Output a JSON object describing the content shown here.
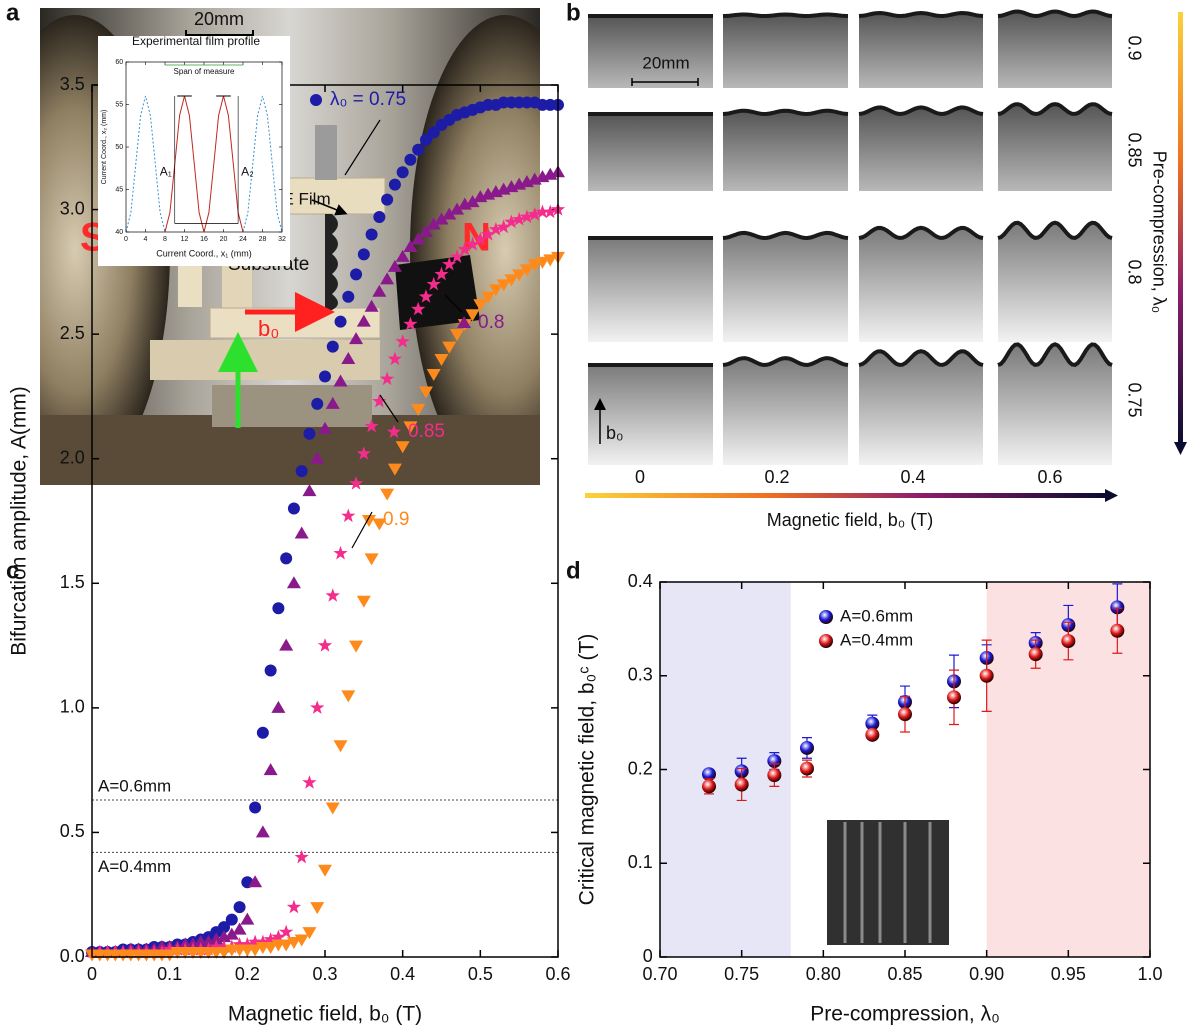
{
  "panel_a": {
    "label": "a",
    "scale_bar": "20mm",
    "precompression": "λ₀",
    "film": "MRE Film",
    "substrate": "Substrate",
    "south": "S",
    "north": "N",
    "field": "b₀"
  },
  "panel_b": {
    "label": "b",
    "scale_bar": "20mm",
    "field_arrow": "b₀",
    "precompression_values": [
      0.9,
      0.85,
      0.8,
      0.75
    ],
    "field_values": [
      0,
      0.2,
      0.4,
      0.6
    ],
    "precompression_title": "Pre-compression, λ₀",
    "field_title": "Magnetic field, b₀ (T)"
  },
  "chart_data": [
    {
      "type": "scatter",
      "label": "c",
      "xlabel": "Magnetic field, b₀ (T)",
      "ylabel": "Bifurcation amplitude, A(mm)",
      "xlim": [
        0,
        0.6
      ],
      "ylim": [
        0,
        3.5
      ],
      "xticks": [
        0,
        0.1,
        0.2,
        0.3,
        0.4,
        0.5,
        0.6
      ],
      "yticks": [
        {
          "value": 0,
          "label": "0.0"
        },
        0.5,
        {
          "value": 1,
          "label": "1.0"
        },
        1.5,
        {
          "value": 2,
          "label": "2.0"
        },
        2.5,
        {
          "value": 3,
          "label": "3.0"
        },
        3.5
      ],
      "x": [
        0,
        0.01,
        0.02,
        0.03,
        0.04,
        0.05,
        0.06,
        0.07,
        0.08,
        0.09,
        0.1,
        0.11,
        0.12,
        0.13,
        0.14,
        0.15,
        0.16,
        0.17,
        0.18,
        0.19,
        0.2,
        0.21,
        0.22,
        0.23,
        0.24,
        0.25,
        0.26,
        0.27,
        0.28,
        0.29,
        0.3,
        0.31,
        0.32,
        0.33,
        0.34,
        0.35,
        0.36,
        0.37,
        0.38,
        0.39,
        0.4,
        0.41,
        0.42,
        0.43,
        0.44,
        0.45,
        0.46,
        0.47,
        0.48,
        0.49,
        0.5,
        0.51,
        0.52,
        0.53,
        0.54,
        0.55,
        0.56,
        0.57,
        0.58,
        0.59,
        0.6
      ],
      "series": [
        {
          "name": "λ₀ = 0.75",
          "color": "#1c1ca6",
          "marker": "circle",
          "values": [
            0.02,
            0.02,
            0.02,
            0.02,
            0.03,
            0.03,
            0.03,
            0.03,
            0.04,
            0.04,
            0.04,
            0.05,
            0.05,
            0.06,
            0.07,
            0.08,
            0.1,
            0.12,
            0.15,
            0.2,
            0.3,
            0.6,
            0.9,
            1.15,
            1.4,
            1.6,
            1.8,
            1.95,
            2.1,
            2.22,
            2.33,
            2.45,
            2.55,
            2.65,
            2.74,
            2.82,
            2.9,
            2.97,
            3.04,
            3.1,
            3.15,
            3.2,
            3.24,
            3.28,
            3.31,
            3.34,
            3.36,
            3.38,
            3.39,
            3.4,
            3.41,
            3.42,
            3.42,
            3.43,
            3.43,
            3.43,
            3.43,
            3.43,
            3.42,
            3.42,
            3.42
          ]
        },
        {
          "name": "0.8",
          "color": "#8a1a8c",
          "marker": "triangle-up",
          "values": [
            0.02,
            0.02,
            0.02,
            0.02,
            0.02,
            0.03,
            0.03,
            0.03,
            0.03,
            0.04,
            0.04,
            0.04,
            0.05,
            0.05,
            0.06,
            0.06,
            0.07,
            0.08,
            0.09,
            0.11,
            0.15,
            0.3,
            0.5,
            0.75,
            1.0,
            1.25,
            1.5,
            1.7,
            1.87,
            2.0,
            2.12,
            2.22,
            2.31,
            2.4,
            2.48,
            2.55,
            2.61,
            2.67,
            2.72,
            2.77,
            2.81,
            2.85,
            2.88,
            2.91,
            2.94,
            2.96,
            2.98,
            3.0,
            3.02,
            3.03,
            3.05,
            3.06,
            3.07,
            3.08,
            3.09,
            3.1,
            3.11,
            3.12,
            3.13,
            3.14,
            3.15
          ]
        },
        {
          "name": "0.85",
          "color": "#f42c8c",
          "marker": "star",
          "values": [
            0.02,
            0.02,
            0.02,
            0.02,
            0.02,
            0.02,
            0.02,
            0.02,
            0.02,
            0.02,
            0.03,
            0.03,
            0.03,
            0.03,
            0.03,
            0.03,
            0.04,
            0.04,
            0.04,
            0.05,
            0.05,
            0.06,
            0.06,
            0.07,
            0.08,
            0.1,
            0.2,
            0.4,
            0.7,
            1.0,
            1.25,
            1.45,
            1.62,
            1.77,
            1.9,
            2.02,
            2.13,
            2.23,
            2.32,
            2.4,
            2.47,
            2.54,
            2.6,
            2.65,
            2.7,
            2.74,
            2.78,
            2.81,
            2.84,
            2.86,
            2.88,
            2.9,
            2.92,
            2.93,
            2.95,
            2.96,
            2.97,
            2.98,
            2.99,
            2.99,
            3.0
          ]
        },
        {
          "name": "0.9",
          "color": "#ff8a1c",
          "marker": "triangle-down",
          "values": [
            0.01,
            0.01,
            0.01,
            0.01,
            0.01,
            0.01,
            0.01,
            0.01,
            0.01,
            0.01,
            0.01,
            0.02,
            0.02,
            0.02,
            0.02,
            0.02,
            0.02,
            0.02,
            0.03,
            0.03,
            0.03,
            0.03,
            0.04,
            0.04,
            0.05,
            0.05,
            0.06,
            0.07,
            0.1,
            0.2,
            0.35,
            0.6,
            0.85,
            1.05,
            1.25,
            1.43,
            1.6,
            1.74,
            1.86,
            1.96,
            2.05,
            2.13,
            2.2,
            2.27,
            2.34,
            2.4,
            2.45,
            2.5,
            2.54,
            2.58,
            2.62,
            2.65,
            2.68,
            2.7,
            2.72,
            2.74,
            2.76,
            2.78,
            2.79,
            2.8,
            2.81
          ]
        }
      ],
      "reference_lines": [
        {
          "value": 0.63,
          "label": "A=0.6mm"
        },
        {
          "value": 0.42,
          "label": "A=0.4mm"
        }
      ]
    },
    {
      "type": "scatter",
      "label": "d",
      "xlabel": "Pre-compression, λ₀",
      "ylabel": "Critical magnetic field, b₀ᶜ (T)",
      "xlim": [
        0.7,
        1
      ],
      "ylim": [
        0,
        0.4
      ],
      "xticks": [
        {
          "value": 0.7,
          "label": "0.70"
        },
        0.75,
        {
          "value": 0.8,
          "label": "0.80"
        },
        0.85,
        {
          "value": 0.9,
          "label": "0.90"
        },
        0.95,
        {
          "value": 1,
          "label": "1.0"
        }
      ],
      "yticks": [
        0,
        0.1,
        0.2,
        0.3,
        0.4
      ],
      "x": [
        0.73,
        0.75,
        0.77,
        0.79,
        0.83,
        0.85,
        0.88,
        0.9,
        0.93,
        0.95,
        0.98
      ],
      "series": [
        {
          "name": "A=0.6mm",
          "color": "#1a1ad8",
          "marker": "ball",
          "values": [
            0.195,
            0.198,
            0.209,
            0.223,
            0.249,
            0.272,
            0.294,
            0.319,
            0.335,
            0.354,
            0.373
          ],
          "errors": [
            0.005,
            0.014,
            0.009,
            0.011,
            0.009,
            0.017,
            0.028,
            0.014,
            0.011,
            0.021,
            0.025
          ]
        },
        {
          "name": "A=0.4mm",
          "color": "#e01818",
          "marker": "ball",
          "values": [
            0.182,
            0.184,
            0.194,
            0.201,
            0.237,
            0.259,
            0.277,
            0.3,
            0.323,
            0.337,
            0.348
          ],
          "errors": [
            0.008,
            0.017,
            0.012,
            0.009,
            0.004,
            0.019,
            0.029,
            0.038,
            0.015,
            0.02,
            0.024
          ]
        }
      ],
      "shaded_regions": [
        {
          "xlim": [
            0.7,
            0.78
          ],
          "color": "#e6e6f7"
        },
        {
          "xlim": [
            0.9,
            1
          ],
          "color": "#fbe1e1"
        }
      ]
    },
    {
      "type": "line",
      "title": "Experimental film profile",
      "xlabel": "Current Coord., x₁ (mm)",
      "ylabel": "Current Coord., x₂ (mm)",
      "xlim": [
        0,
        32
      ],
      "ylim": [
        40,
        60
      ],
      "xticks": [
        0,
        4,
        8,
        12,
        16,
        20,
        24,
        28,
        32
      ],
      "yticks": [
        40,
        45,
        50,
        55,
        60
      ],
      "x": [
        0,
        1,
        2,
        3,
        4,
        5,
        6,
        7,
        8,
        9,
        10,
        11,
        12,
        13,
        14,
        15,
        16,
        17,
        18,
        19,
        20,
        21,
        22,
        23,
        24,
        25,
        26,
        27,
        28,
        29,
        30,
        31,
        32
      ],
      "series": [
        {
          "color": "#3a8fd0",
          "dashed": true,
          "values": [
            40,
            42.3,
            48,
            53.7,
            56,
            53.7,
            48,
            42.3,
            40,
            null,
            null,
            null,
            null,
            null,
            null,
            null,
            null,
            null,
            null,
            null,
            null,
            null,
            null,
            null,
            40,
            42.3,
            48,
            53.7,
            56,
            53.7,
            48,
            42.3,
            40
          ]
        },
        {
          "color": "#c0281e",
          "dashed": false,
          "values": [
            null,
            null,
            null,
            null,
            null,
            null,
            null,
            null,
            40,
            42.3,
            48,
            53.7,
            56,
            53.7,
            48,
            42.3,
            40,
            42.3,
            48,
            53.7,
            56,
            53.7,
            48,
            42.3,
            40,
            null,
            null,
            null,
            null,
            null,
            null,
            null,
            null
          ]
        }
      ],
      "annotations": [
        "Span of measure",
        "A₁",
        "A₂"
      ]
    }
  ]
}
